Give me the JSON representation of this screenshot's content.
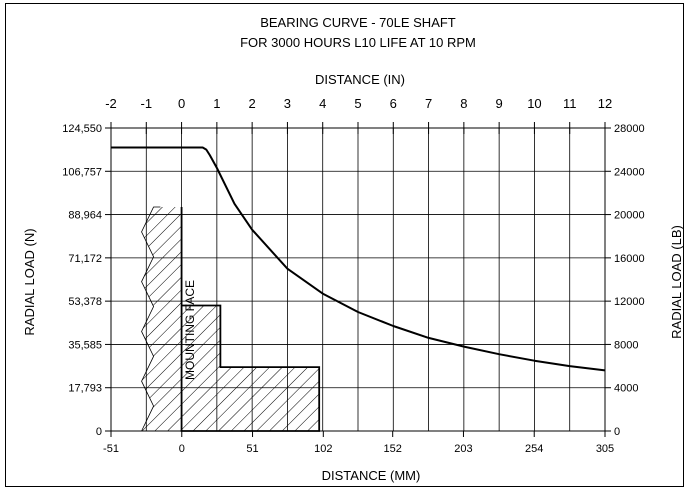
{
  "chart_data": {
    "type": "line",
    "title": "BEARING CURVE - 70LE SHAFT",
    "subtitle": "FOR 3000 HOURS L10 LIFE AT 10 RPM",
    "top_axis": {
      "label": "DISTANCE (IN)",
      "ticks": [
        "-2",
        "-1",
        "0",
        "1",
        "2",
        "3",
        "4",
        "5",
        "6",
        "7",
        "8",
        "9",
        "10",
        "11",
        "12"
      ],
      "range": [
        -2,
        12
      ]
    },
    "bottom_axis": {
      "label": "DISTANCE (MM)",
      "ticks": [
        "-51",
        "0",
        "51",
        "102",
        "152",
        "203",
        "254",
        "305"
      ],
      "range": [
        -51,
        305
      ]
    },
    "left_axis": {
      "label": "RADIAL LOAD (N)",
      "ticks": [
        "0",
        "17,793",
        "35,585",
        "53,378",
        "71,172",
        "88,964",
        "106,757",
        "124,550"
      ],
      "range": [
        0,
        124550
      ]
    },
    "right_axis": {
      "label": "RADIAL LOAD (LB)",
      "ticks": [
        "0",
        "4000",
        "8000",
        "12000",
        "16000",
        "20000",
        "24000",
        "28000"
      ],
      "range": [
        0,
        28000
      ]
    },
    "annotation": "MOUNTING FACE",
    "grid": true,
    "series": [
      {
        "x_in": [
          -2,
          0.6,
          0.7,
          0.8,
          1,
          1.5,
          2,
          3,
          4,
          5,
          6,
          7,
          8,
          9,
          10,
          11,
          12
        ],
        "y_lb": [
          26200,
          26200,
          26000,
          25500,
          24300,
          21000,
          18600,
          15000,
          12700,
          11000,
          9700,
          8600,
          7800,
          7100,
          6500,
          6000,
          5600
        ]
      }
    ],
    "mounting_profile": {
      "x_in": [
        0,
        0,
        1.1,
        1.1,
        3.9,
        3.9,
        0,
        0
      ],
      "y_lb": [
        20700,
        11600,
        11600,
        5900,
        5900,
        0,
        0,
        20700
      ]
    }
  }
}
